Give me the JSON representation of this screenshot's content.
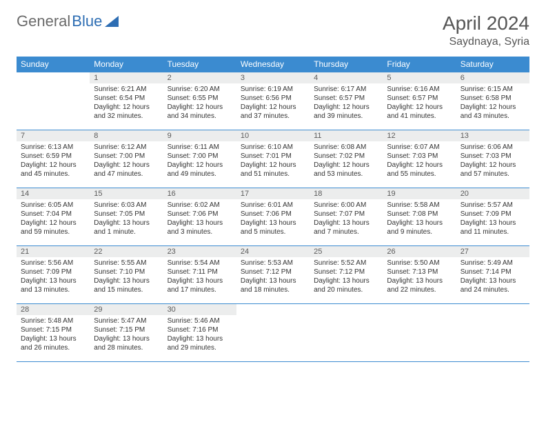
{
  "logo": {
    "word1": "General",
    "word2": "Blue"
  },
  "title": "April 2024",
  "location": "Saydnaya, Syria",
  "colors": {
    "header_bg": "#3b8bd0",
    "header_text": "#ffffff",
    "daynum_bg": "#eceded",
    "border": "#3b8bd0",
    "logo_gray": "#6a6a6a",
    "logo_blue": "#2d6db3"
  },
  "day_headers": [
    "Sunday",
    "Monday",
    "Tuesday",
    "Wednesday",
    "Thursday",
    "Friday",
    "Saturday"
  ],
  "weeks": [
    [
      null,
      {
        "n": "1",
        "sr": "6:21 AM",
        "ss": "6:54 PM",
        "dl": "12 hours and 32 minutes."
      },
      {
        "n": "2",
        "sr": "6:20 AM",
        "ss": "6:55 PM",
        "dl": "12 hours and 34 minutes."
      },
      {
        "n": "3",
        "sr": "6:19 AM",
        "ss": "6:56 PM",
        "dl": "12 hours and 37 minutes."
      },
      {
        "n": "4",
        "sr": "6:17 AM",
        "ss": "6:57 PM",
        "dl": "12 hours and 39 minutes."
      },
      {
        "n": "5",
        "sr": "6:16 AM",
        "ss": "6:57 PM",
        "dl": "12 hours and 41 minutes."
      },
      {
        "n": "6",
        "sr": "6:15 AM",
        "ss": "6:58 PM",
        "dl": "12 hours and 43 minutes."
      }
    ],
    [
      {
        "n": "7",
        "sr": "6:13 AM",
        "ss": "6:59 PM",
        "dl": "12 hours and 45 minutes."
      },
      {
        "n": "8",
        "sr": "6:12 AM",
        "ss": "7:00 PM",
        "dl": "12 hours and 47 minutes."
      },
      {
        "n": "9",
        "sr": "6:11 AM",
        "ss": "7:00 PM",
        "dl": "12 hours and 49 minutes."
      },
      {
        "n": "10",
        "sr": "6:10 AM",
        "ss": "7:01 PM",
        "dl": "12 hours and 51 minutes."
      },
      {
        "n": "11",
        "sr": "6:08 AM",
        "ss": "7:02 PM",
        "dl": "12 hours and 53 minutes."
      },
      {
        "n": "12",
        "sr": "6:07 AM",
        "ss": "7:03 PM",
        "dl": "12 hours and 55 minutes."
      },
      {
        "n": "13",
        "sr": "6:06 AM",
        "ss": "7:03 PM",
        "dl": "12 hours and 57 minutes."
      }
    ],
    [
      {
        "n": "14",
        "sr": "6:05 AM",
        "ss": "7:04 PM",
        "dl": "12 hours and 59 minutes."
      },
      {
        "n": "15",
        "sr": "6:03 AM",
        "ss": "7:05 PM",
        "dl": "13 hours and 1 minute."
      },
      {
        "n": "16",
        "sr": "6:02 AM",
        "ss": "7:06 PM",
        "dl": "13 hours and 3 minutes."
      },
      {
        "n": "17",
        "sr": "6:01 AM",
        "ss": "7:06 PM",
        "dl": "13 hours and 5 minutes."
      },
      {
        "n": "18",
        "sr": "6:00 AM",
        "ss": "7:07 PM",
        "dl": "13 hours and 7 minutes."
      },
      {
        "n": "19",
        "sr": "5:58 AM",
        "ss": "7:08 PM",
        "dl": "13 hours and 9 minutes."
      },
      {
        "n": "20",
        "sr": "5:57 AM",
        "ss": "7:09 PM",
        "dl": "13 hours and 11 minutes."
      }
    ],
    [
      {
        "n": "21",
        "sr": "5:56 AM",
        "ss": "7:09 PM",
        "dl": "13 hours and 13 minutes."
      },
      {
        "n": "22",
        "sr": "5:55 AM",
        "ss": "7:10 PM",
        "dl": "13 hours and 15 minutes."
      },
      {
        "n": "23",
        "sr": "5:54 AM",
        "ss": "7:11 PM",
        "dl": "13 hours and 17 minutes."
      },
      {
        "n": "24",
        "sr": "5:53 AM",
        "ss": "7:12 PM",
        "dl": "13 hours and 18 minutes."
      },
      {
        "n": "25",
        "sr": "5:52 AM",
        "ss": "7:12 PM",
        "dl": "13 hours and 20 minutes."
      },
      {
        "n": "26",
        "sr": "5:50 AM",
        "ss": "7:13 PM",
        "dl": "13 hours and 22 minutes."
      },
      {
        "n": "27",
        "sr": "5:49 AM",
        "ss": "7:14 PM",
        "dl": "13 hours and 24 minutes."
      }
    ],
    [
      {
        "n": "28",
        "sr": "5:48 AM",
        "ss": "7:15 PM",
        "dl": "13 hours and 26 minutes."
      },
      {
        "n": "29",
        "sr": "5:47 AM",
        "ss": "7:15 PM",
        "dl": "13 hours and 28 minutes."
      },
      {
        "n": "30",
        "sr": "5:46 AM",
        "ss": "7:16 PM",
        "dl": "13 hours and 29 minutes."
      },
      null,
      null,
      null,
      null
    ]
  ],
  "labels": {
    "sunrise": "Sunrise:",
    "sunset": "Sunset:",
    "daylight": "Daylight:"
  }
}
